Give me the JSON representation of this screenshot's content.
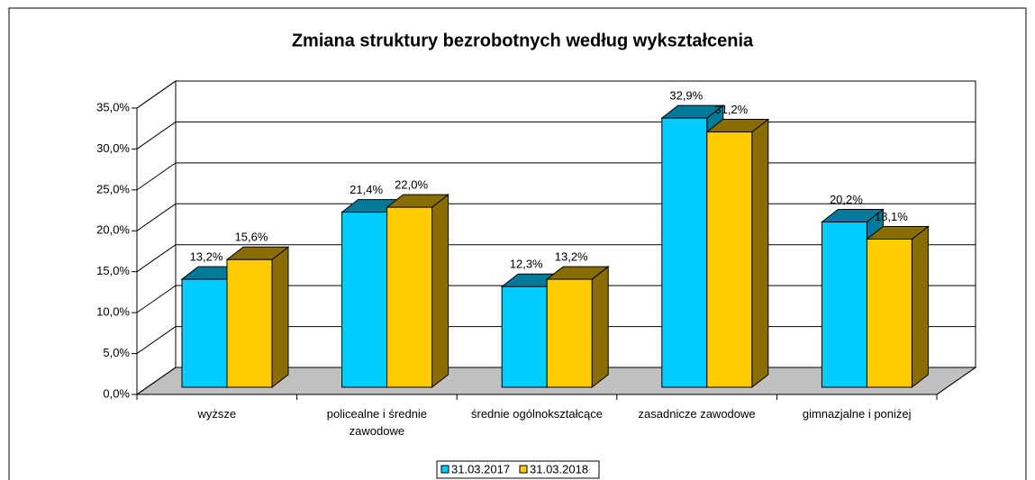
{
  "chart_data": {
    "type": "bar3d",
    "title": "Zmiana struktury bezrobotnych według wykształcenia",
    "categories": [
      "wyższe",
      "policealne i średnie zawodowe",
      "średnie ogólnokształcące",
      "zasadnicze zawodowe",
      "gimnazjalne i poniżej"
    ],
    "series": [
      {
        "name": "31.03.2017",
        "color": "#00ccff",
        "side": "#007a99",
        "values": [
          13.2,
          21.4,
          12.3,
          32.9,
          20.2
        ],
        "value_labels": [
          "13,2%",
          "21,4%",
          "12,3%",
          "32,9%",
          "20,2%"
        ]
      },
      {
        "name": "31.03.2018",
        "color": "#ffcc00",
        "side": "#8a6d00",
        "values": [
          15.6,
          22.0,
          13.2,
          31.2,
          18.1
        ],
        "value_labels": [
          "15,6%",
          "22,0%",
          "13,2%",
          "31,2%",
          "18,1%"
        ]
      }
    ],
    "ylim": [
      0,
      35
    ],
    "yticks": [
      {
        "value": 0,
        "label": "0,0%"
      },
      {
        "value": 5,
        "label": "5,0%"
      },
      {
        "value": 10,
        "label": "10,0%"
      },
      {
        "value": 15,
        "label": "15,0%"
      },
      {
        "value": 20,
        "label": "20,0%"
      },
      {
        "value": 25,
        "label": "25,0%"
      },
      {
        "value": 30,
        "label": "30,0%"
      },
      {
        "value": 35,
        "label": "35,0%"
      }
    ],
    "grid": true,
    "legend": "bottom"
  }
}
